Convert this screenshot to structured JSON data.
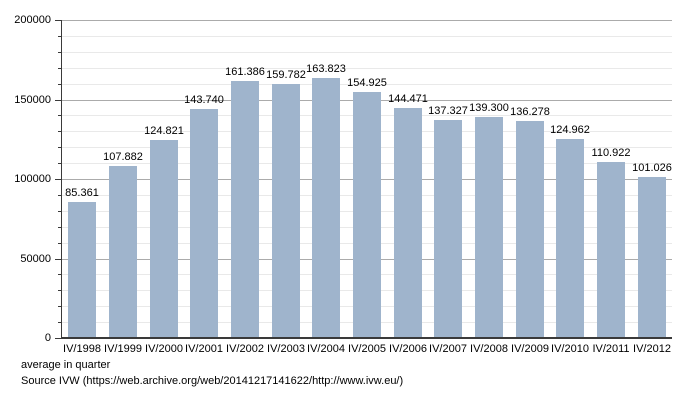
{
  "chart_data": {
    "type": "bar",
    "title": "",
    "xlabel": "",
    "ylabel": "",
    "categories": [
      "IV/1998",
      "IV/1999",
      "IV/2000",
      "IV/2001",
      "IV/2002",
      "IV/2003",
      "IV/2004",
      "IV/2005",
      "IV/2006",
      "IV/2007",
      "IV/2008",
      "IV/2009",
      "IV/2010",
      "IV/2011",
      "IV/2012"
    ],
    "values": [
      85361,
      107882,
      124821,
      143740,
      161386,
      159782,
      163823,
      154925,
      144471,
      137327,
      139300,
      136278,
      124962,
      110922,
      101026
    ],
    "value_labels": [
      "85.361",
      "107.882",
      "124.821",
      "143.740",
      "161.386",
      "159.782",
      "163.823",
      "154.925",
      "144.471",
      "137.327",
      "139.300",
      "136.278",
      "124.962",
      "110.922",
      "101.026"
    ],
    "ylim": [
      0,
      200000
    ],
    "y_major_ticks": [
      0,
      50000,
      100000,
      150000,
      200000
    ],
    "y_major_tick_labels": [
      "0",
      "50000",
      "100000",
      "150000",
      "200000"
    ],
    "y_minor_step": 10000,
    "grid": "horizontal major and minor gridlines",
    "legend": "none",
    "bar_color": "#9fb4cc"
  },
  "colors": {
    "bar_fill": "#9fb4cc",
    "gridline_major": "#ababab",
    "gridline_minor": "#e9e9e9",
    "axis": "#3a3a3a",
    "text": "#000000",
    "background": "#ffffff"
  },
  "footer": {
    "note": "average in quarter",
    "source": "Source IVW (https://web.archive.org/web/20141217141622/http://www.ivw.eu/)"
  }
}
